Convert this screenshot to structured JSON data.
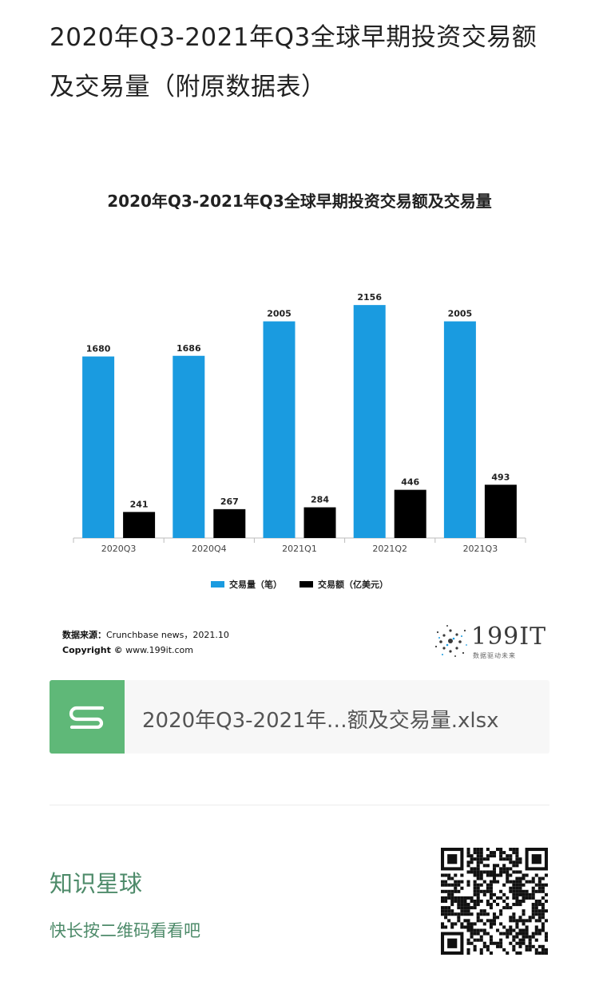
{
  "article": {
    "title": "2020年Q3-2021年Q3全球早期投资交易额及交易量（附原数据表）"
  },
  "chart_data": {
    "type": "bar",
    "title": "2020年Q3-2021年Q3全球早期投资交易额及交易量",
    "categories": [
      "2020Q3",
      "2020Q4",
      "2021Q1",
      "2021Q2",
      "2021Q3"
    ],
    "series": [
      {
        "name": "交易量（笔）",
        "color": "#1a9be0",
        "values": [
          1680,
          1686,
          2005,
          2156,
          2005
        ]
      },
      {
        "name": "交易额（亿美元）",
        "color": "#000000",
        "values": [
          241,
          267,
          284,
          446,
          493
        ]
      }
    ],
    "ylim": [
      0,
      2400
    ],
    "grid": false,
    "legend_position": "bottom"
  },
  "source": {
    "label": "数据来源：",
    "text": "Crunchbase news，2021.10",
    "copyright_label": "Copyright ©",
    "copyright_text": "www.199it.com"
  },
  "brand": {
    "name": "199IT",
    "tagline": "数据驱动未来"
  },
  "file": {
    "icon": "spreadsheet-s-icon",
    "name": "2020年Q3-2021年…额及交易量.xlsx"
  },
  "planet": {
    "title": "知识星球",
    "subtitle": "快长按二维码看看吧"
  }
}
